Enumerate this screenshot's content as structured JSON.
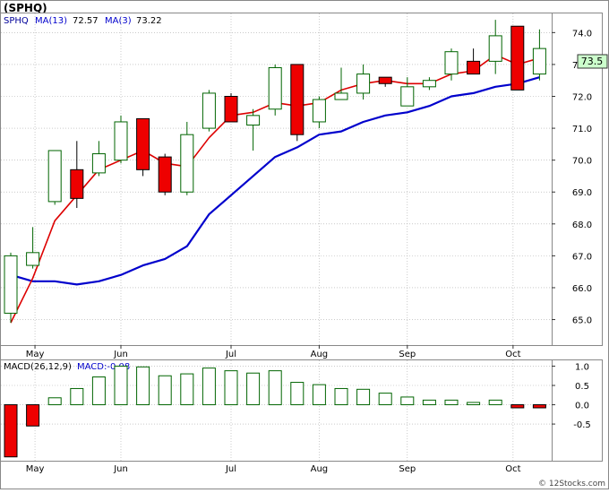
{
  "header": {
    "ticker": "(SPHQ)",
    "ma_legend_label": "SPHQ",
    "ma13_label": "MA(13)",
    "ma13_value": "72.57",
    "ma3_label": "MA(3)",
    "ma3_value": "73.22",
    "price_badge": "73.5",
    "macd_label": "MACD(26,12,9)",
    "macd_value_label": "MACD:-0.08",
    "watermark": "© 12Stocks.com"
  },
  "colors": {
    "ma13": "#0000cc",
    "ma3": "#dd0000",
    "up_candle": "#ffffff",
    "up_candle_border": "#006400",
    "down_candle": "#ee0000",
    "grid": "#aaaaaa",
    "macd_bar_border": "#006400",
    "price_badge_bg": "#ccffcc"
  },
  "chart_data": [
    {
      "type": "candlestick",
      "ylim": [
        64.2,
        74.6
      ],
      "y_ticks": [
        "65.0",
        "66.0",
        "67.0",
        "68.0",
        "69.0",
        "70.0",
        "71.0",
        "72.0",
        "73.0",
        "74.0"
      ],
      "x_ticks": [
        "May",
        "Jun",
        "Jul",
        "Aug",
        "Sep",
        "Oct"
      ],
      "candles": [
        {
          "o": 65.2,
          "h": 67.1,
          "l": 64.9,
          "c": 67.0
        },
        {
          "o": 66.7,
          "h": 67.9,
          "l": 66.6,
          "c": 67.1
        },
        {
          "o": 68.7,
          "h": 70.3,
          "l": 68.6,
          "c": 70.3
        },
        {
          "o": 69.7,
          "h": 70.6,
          "l": 68.5,
          "c": 68.8
        },
        {
          "o": 69.6,
          "h": 70.6,
          "l": 69.5,
          "c": 70.2
        },
        {
          "o": 70.0,
          "h": 71.4,
          "l": 69.9,
          "c": 71.2
        },
        {
          "o": 71.3,
          "h": 71.3,
          "l": 69.5,
          "c": 69.7
        },
        {
          "o": 70.1,
          "h": 70.2,
          "l": 68.9,
          "c": 69.0
        },
        {
          "o": 69.0,
          "h": 71.2,
          "l": 68.9,
          "c": 70.8
        },
        {
          "o": 71.0,
          "h": 72.2,
          "l": 70.9,
          "c": 72.1
        },
        {
          "o": 72.0,
          "h": 72.1,
          "l": 71.2,
          "c": 71.2
        },
        {
          "o": 71.1,
          "h": 71.6,
          "l": 70.3,
          "c": 71.4
        },
        {
          "o": 71.6,
          "h": 73.0,
          "l": 71.4,
          "c": 72.9
        },
        {
          "o": 73.0,
          "h": 73.0,
          "l": 70.6,
          "c": 70.8
        },
        {
          "o": 71.2,
          "h": 72.0,
          "l": 71.0,
          "c": 71.9
        },
        {
          "o": 71.9,
          "h": 72.9,
          "l": 71.9,
          "c": 72.1
        },
        {
          "o": 72.1,
          "h": 73.0,
          "l": 71.9,
          "c": 72.7
        },
        {
          "o": 72.6,
          "h": 72.6,
          "l": 72.3,
          "c": 72.4
        },
        {
          "o": 71.7,
          "h": 72.6,
          "l": 71.7,
          "c": 72.3
        },
        {
          "o": 72.3,
          "h": 72.6,
          "l": 72.2,
          "c": 72.5
        },
        {
          "o": 72.7,
          "h": 73.5,
          "l": 72.5,
          "c": 73.4
        },
        {
          "o": 73.1,
          "h": 73.5,
          "l": 72.7,
          "c": 72.7
        },
        {
          "o": 73.1,
          "h": 74.4,
          "l": 72.7,
          "c": 73.9
        },
        {
          "o": 74.2,
          "h": 74.2,
          "l": 72.2,
          "c": 72.2
        },
        {
          "o": 72.7,
          "h": 74.1,
          "l": 72.5,
          "c": 73.5
        }
      ],
      "ma13": [
        64.9,
        66.4,
        68.1,
        68.9,
        69.7,
        70.0,
        70.3,
        null,
        null,
        null,
        null,
        null,
        null,
        null,
        null,
        null,
        null,
        null,
        null,
        null,
        null,
        null,
        null,
        null,
        null
      ],
      "ma13_series": [
        {
          "i": 0,
          "v": 64.9
        },
        {
          "i": 1,
          "v": 66.4
        },
        {
          "i": 2,
          "v": 68.1
        },
        {
          "i": 3,
          "v": 68.9
        },
        {
          "i": 4,
          "v": 69.7
        },
        {
          "i": 5,
          "v": 70.0
        },
        {
          "i": 6,
          "v": 70.3
        },
        {
          "i": 7,
          "v": 69.9
        },
        {
          "i": 8,
          "v": 69.9
        },
        {
          "i": 9,
          "v": 70.8
        },
        {
          "i": 10,
          "v": 71.4
        },
        {
          "i": 11,
          "v": 71.6
        },
        {
          "i": 12,
          "v": 71.8
        },
        {
          "i": 13,
          "v": 71.8
        },
        {
          "i": 14,
          "v": 71.8
        },
        {
          "i": 15,
          "v": 72.2
        },
        {
          "i": 16,
          "v": 72.4
        },
        {
          "i": 17,
          "v": 72.5
        },
        {
          "i": 18,
          "v": 72.4
        },
        {
          "i": 19,
          "v": 72.5
        },
        {
          "i": 20,
          "v": 72.7
        },
        {
          "i": 21,
          "v": 72.8
        },
        {
          "i": 22,
          "v": 73.3
        },
        {
          "i": 23,
          "v": 73.0
        },
        {
          "i": 24,
          "v": 73.2
        }
      ],
      "ma_blue": [
        64.9,
        66.3,
        68.1,
        68.9,
        69.7,
        70.0,
        70.3,
        69.9,
        69.8,
        70.7,
        71.4,
        71.5,
        71.8,
        71.7,
        71.8,
        72.2,
        72.4,
        72.5,
        72.4,
        72.4,
        72.7,
        72.8,
        73.3,
        73.0,
        73.2
      ],
      "ma_red": [
        66.4,
        66.2,
        66.2,
        66.1,
        66.2,
        66.4,
        66.7,
        66.9,
        67.3,
        68.3,
        68.9,
        69.5,
        70.1,
        70.4,
        70.8,
        70.9,
        71.2,
        71.4,
        71.5,
        71.7,
        72.0,
        72.1,
        72.3,
        72.4,
        72.6
      ],
      "ma_blue_start": 0,
      "ma_red_start": 0
    },
    {
      "type": "bar",
      "ylim": [
        -1.45,
        1.15
      ],
      "y_ticks": [
        "1.0",
        "0.5",
        "0.0",
        "-0.5"
      ],
      "x_ticks": [
        "May",
        "Jun",
        "Jul",
        "Aug",
        "Sep",
        "Oct"
      ],
      "values": [
        -1.35,
        -0.55,
        0.18,
        0.42,
        0.72,
        1.0,
        0.98,
        0.75,
        0.8,
        0.95,
        0.88,
        0.82,
        0.88,
        0.58,
        0.52,
        0.42,
        0.4,
        0.3,
        0.2,
        0.12,
        0.12,
        0.06,
        0.12,
        -0.08,
        -0.08
      ]
    }
  ]
}
